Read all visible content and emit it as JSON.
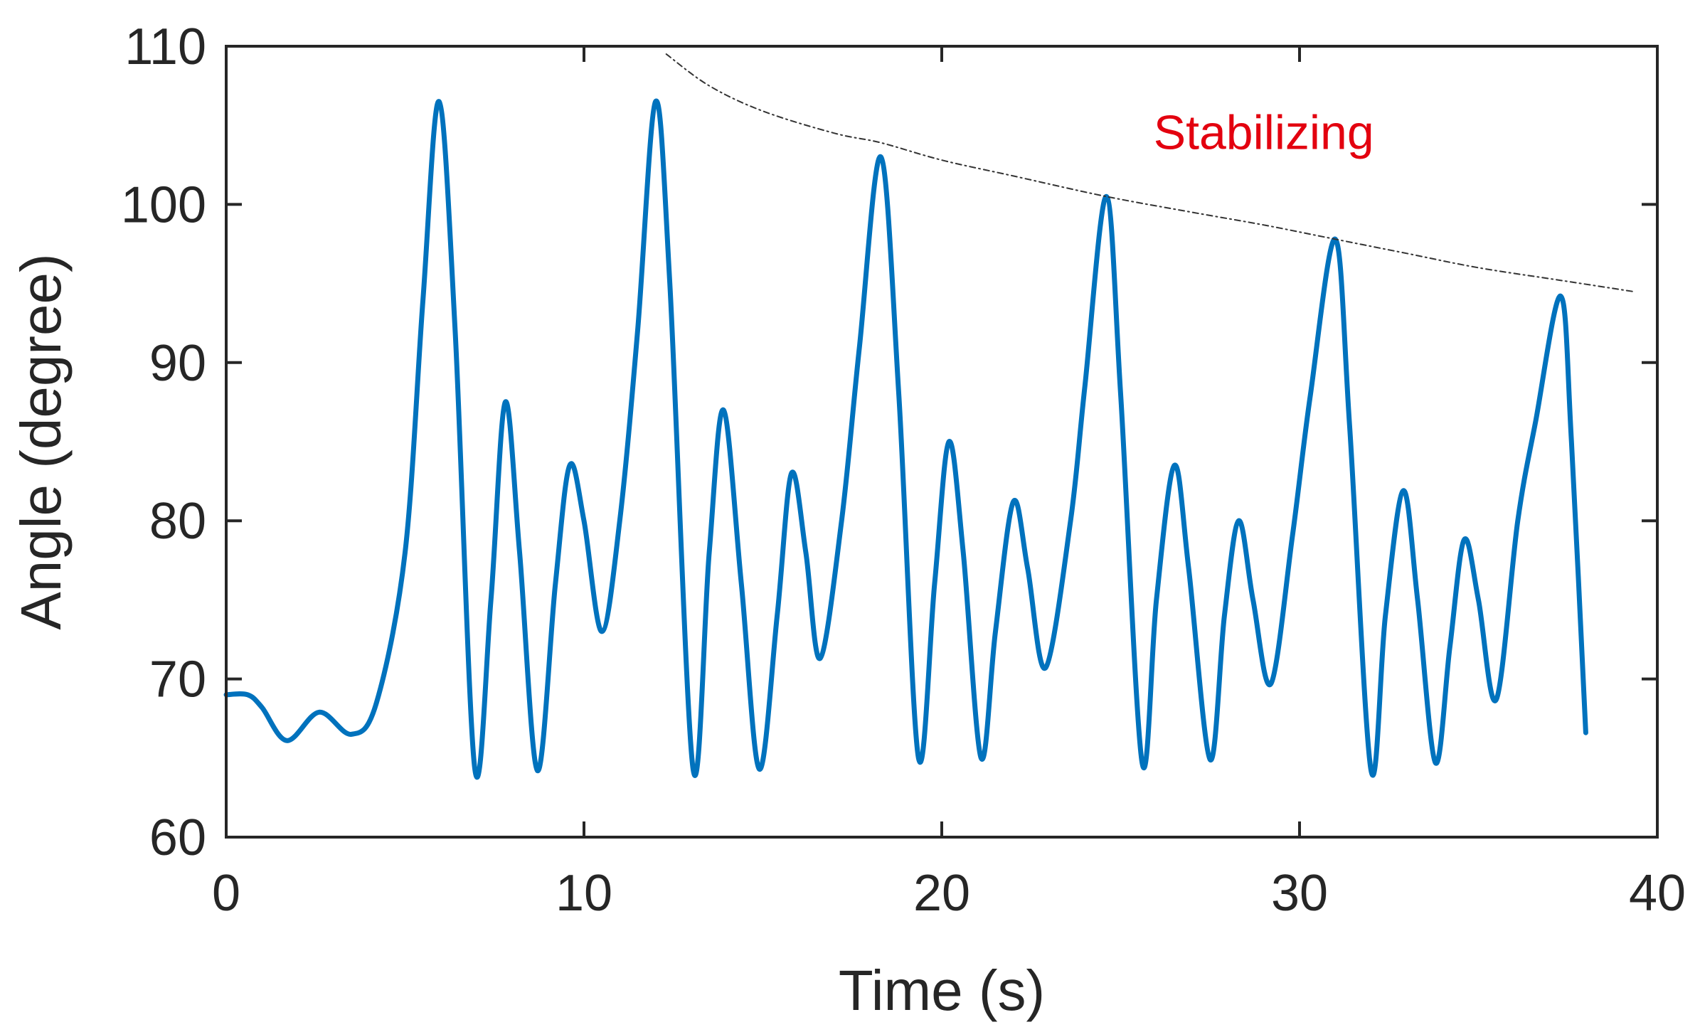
{
  "chart_data": {
    "type": "line",
    "title": "",
    "xlabel": "Time (s)",
    "ylabel": "Angle (degree)",
    "xlim": [
      0,
      40
    ],
    "ylim": [
      60,
      110
    ],
    "xticks": [
      0,
      10,
      20,
      30,
      40
    ],
    "xtick_labels": [
      "0",
      "10",
      "20",
      "30",
      "40"
    ],
    "yticks": [
      60,
      70,
      80,
      90,
      100,
      110
    ],
    "ytick_labels": [
      "60",
      "70",
      "80",
      "90",
      "100",
      "110"
    ],
    "grid": false,
    "series_color": "#0072BD",
    "annotation_color": "#E3000F",
    "series": [
      {
        "name": "Angle",
        "x": [
          0,
          0.6,
          1.0,
          1.7,
          2.6,
          3.5,
          4.2,
          5.0,
          5.5,
          5.95,
          6.4,
          6.95,
          7.4,
          7.8,
          8.2,
          8.7,
          9.2,
          9.6,
          10.0,
          10.5,
          11.0,
          11.5,
          12.0,
          12.4,
          13.05,
          13.5,
          13.9,
          14.4,
          14.9,
          15.4,
          15.8,
          16.2,
          16.6,
          17.2,
          17.7,
          18.3,
          18.8,
          19.35,
          19.8,
          20.2,
          20.6,
          21.1,
          21.5,
          22.0,
          22.4,
          22.9,
          23.6,
          24.0,
          24.6,
          25.0,
          25.6,
          26.0,
          26.5,
          26.9,
          27.5,
          27.9,
          28.3,
          28.7,
          29.2,
          29.8,
          30.3,
          31.0,
          31.4,
          32.0,
          32.4,
          32.9,
          33.3,
          33.8,
          34.2,
          34.6,
          35.0,
          35.5,
          36.1,
          36.6,
          37.3,
          37.6,
          38.0
        ],
        "y": [
          69.0,
          69.0,
          68.2,
          66.1,
          67.9,
          66.5,
          68.5,
          78.0,
          94.0,
          106.5,
          92.0,
          64.3,
          75.0,
          87.5,
          78.0,
          64.2,
          76.0,
          83.5,
          80.0,
          73.0,
          80.0,
          92.0,
          106.5,
          95.0,
          64.3,
          78.0,
          87.0,
          76.0,
          64.3,
          74.0,
          83.0,
          78.0,
          71.3,
          80.0,
          91.0,
          103.0,
          88.0,
          65.0,
          76.0,
          85.0,
          78.0,
          65.0,
          73.0,
          81.2,
          77.0,
          70.7,
          80.0,
          88.5,
          100.5,
          88.0,
          64.7,
          75.0,
          83.5,
          77.0,
          64.9,
          74.0,
          80.0,
          75.0,
          69.7,
          79.0,
          87.9,
          97.8,
          86.0,
          64.2,
          74.0,
          81.9,
          75.0,
          64.7,
          72.0,
          78.8,
          75.0,
          68.7,
          80.0,
          86.3,
          94.2,
          85.0,
          66.6
        ]
      },
      {
        "name": "Stabilizing envelope",
        "style": "dashed",
        "x": [
          12.3,
          13.5,
          15.0,
          17.0,
          18.3,
          20.0,
          22.0,
          24.6,
          27.0,
          29.0,
          31.0,
          33.0,
          35.0,
          37.3,
          39.3
        ],
        "y": [
          109.5,
          107.5,
          105.9,
          104.5,
          103.9,
          102.8,
          101.8,
          100.5,
          99.5,
          98.7,
          97.8,
          96.9,
          96.0,
          95.2,
          94.5
        ]
      }
    ],
    "annotations": [
      {
        "text": "Stabilizing",
        "x": 29.0,
        "y": 104.4
      }
    ]
  }
}
